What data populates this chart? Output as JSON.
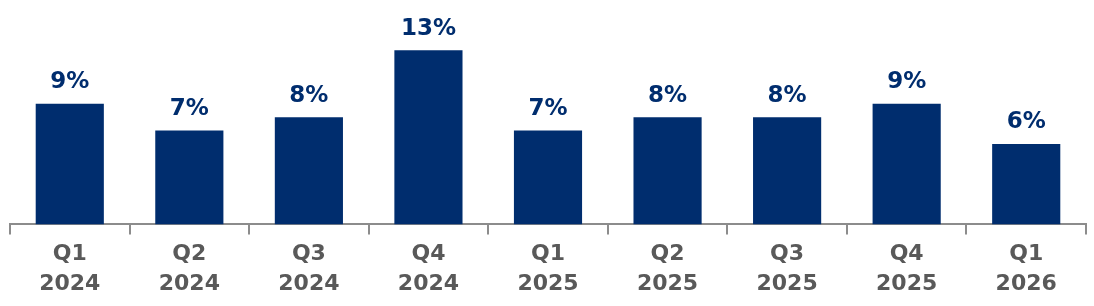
{
  "chart_data": {
    "type": "bar",
    "categories": [
      "Q1 2024",
      "Q2 2024",
      "Q3 2024",
      "Q4 2024",
      "Q1 2025",
      "Q2 2025",
      "Q3 2025",
      "Q4 2025",
      "Q1 2026"
    ],
    "values": [
      9,
      7,
      8,
      13,
      7,
      8,
      8,
      9,
      6
    ],
    "value_labels": [
      "9%",
      "7%",
      "8%",
      "13%",
      "7%",
      "8%",
      "8%",
      "9%",
      "6%"
    ],
    "color": "#002d6e",
    "grid": false,
    "legend": false,
    "tick_labels": "x"
  }
}
